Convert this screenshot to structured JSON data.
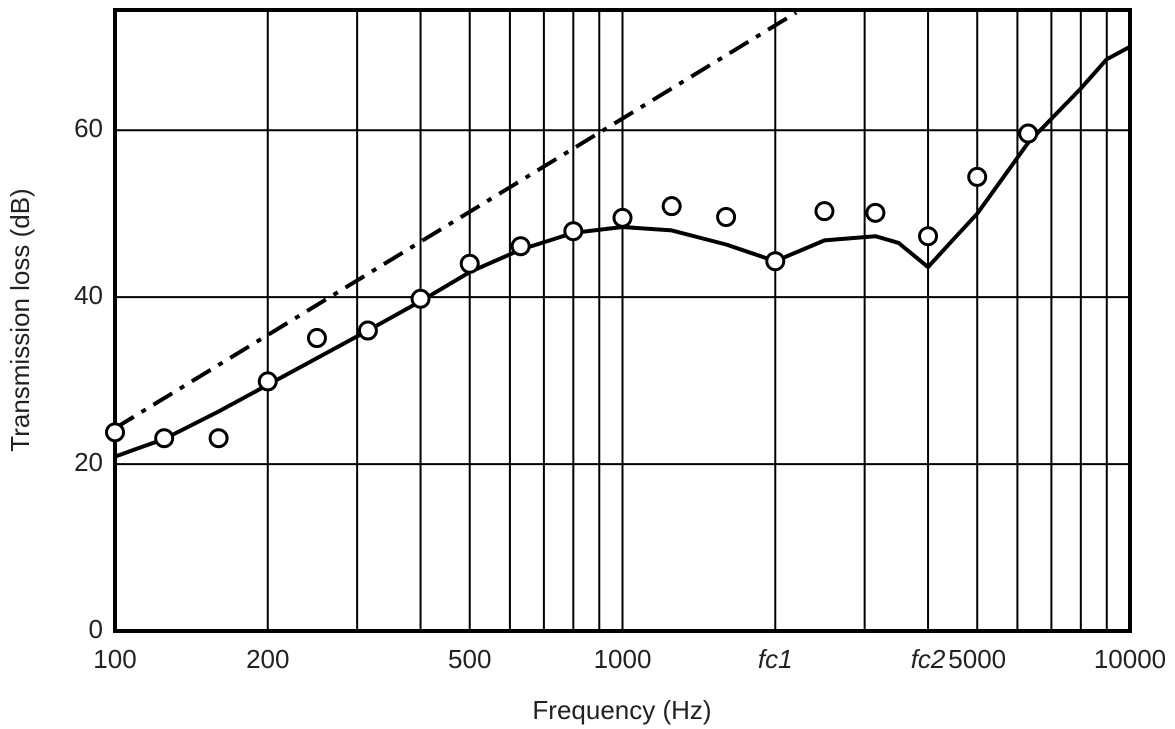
{
  "chart_data": {
    "type": "line",
    "xlabel": "Frequency (Hz)",
    "ylabel": "Transmission loss (dB)",
    "xscale": "log",
    "xlim": [
      100,
      10000
    ],
    "ylim": [
      0,
      74.4
    ],
    "xticks": [
      100,
      200,
      500,
      1000,
      {
        "value": 2000,
        "label": "fc1"
      },
      {
        "value": 4000,
        "label": "fc2"
      },
      5000,
      10000
    ],
    "xminorticks": [
      300,
      400,
      600,
      700,
      800,
      900,
      3000,
      6000,
      7000,
      8000,
      9000
    ],
    "yticks": [
      0,
      20,
      40,
      60
    ],
    "grid": true,
    "series": [
      {
        "style": "dashdot",
        "color": "#000000",
        "x": [
          100,
          2200
        ],
        "values": [
          24.3,
          74.1
        ]
      },
      {
        "style": "solid",
        "color": "#000000",
        "x": [
          100,
          125,
          160,
          200,
          250,
          315,
          400,
          500,
          630,
          800,
          1000,
          1250,
          1600,
          2000,
          2500,
          3150,
          3500,
          4000,
          4500,
          5000,
          6300,
          8000,
          9000,
          10000
        ],
        "values": [
          20.9,
          23,
          26.3,
          29.5,
          32.7,
          36,
          39.5,
          43,
          45.7,
          47.7,
          48.4,
          48,
          46.3,
          44.3,
          46.8,
          47.3,
          46.5,
          43.6,
          47,
          50,
          58.5,
          65,
          68.5,
          70
        ]
      },
      {
        "style": "markers",
        "color": "#000000",
        "x": [
          100,
          125,
          160,
          200,
          250,
          315,
          400,
          500,
          630,
          800,
          1000,
          1250,
          1600,
          2000,
          2500,
          3150,
          4000,
          5000,
          6300
        ],
        "values": [
          23.8,
          23.1,
          23.1,
          29.9,
          35.1,
          36,
          39.8,
          44,
          46.1,
          47.9,
          49.5,
          50.9,
          49.6,
          44.3,
          50.3,
          50.1,
          47.3,
          54.4,
          59.6
        ]
      }
    ]
  }
}
